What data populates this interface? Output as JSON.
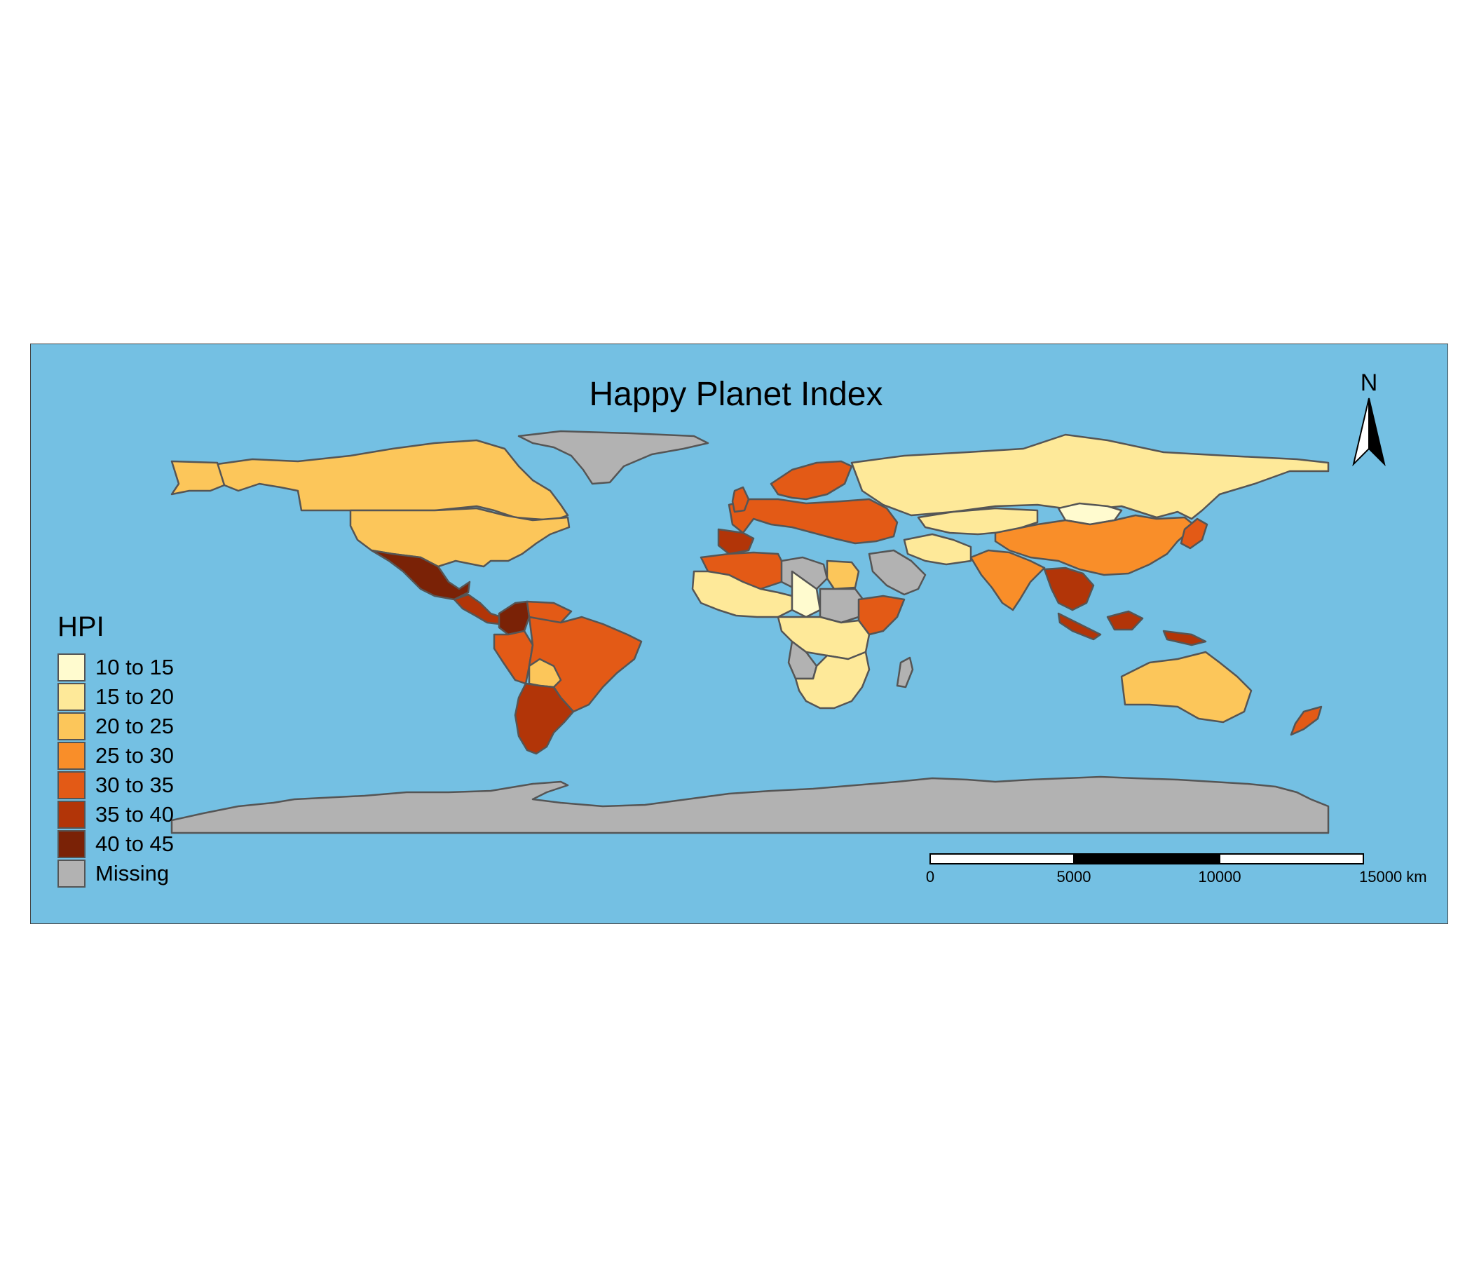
{
  "title": "Happy Planet Index",
  "legend": {
    "title": "HPI",
    "items": [
      {
        "label": "10 to 15",
        "color": "#FFFBCF"
      },
      {
        "label": "15 to 20",
        "color": "#FEE999"
      },
      {
        "label": "20 to 25",
        "color": "#FCC65A"
      },
      {
        "label": "25 to 30",
        "color": "#F98E29"
      },
      {
        "label": "30 to 35",
        "color": "#E35A16"
      },
      {
        "label": "35 to 40",
        "color": "#B23508"
      },
      {
        "label": "40 to 45",
        "color": "#7A2206"
      },
      {
        "label": "Missing",
        "color": "#B2B2B2"
      }
    ]
  },
  "ocean_color": "#74C0E3",
  "compass": {
    "label": "N"
  },
  "scale_bar": {
    "ticks": [
      "0",
      "5000",
      "10000",
      "15000 km"
    ]
  },
  "regions": [
    {
      "name": "Greenland",
      "class": "Missing"
    },
    {
      "name": "Canada",
      "class": "20 to 25"
    },
    {
      "name": "United States",
      "class": "20 to 25"
    },
    {
      "name": "Mexico",
      "class": "40 to 45"
    },
    {
      "name": "Central America",
      "class": "35 to 40"
    },
    {
      "name": "Colombia",
      "class": "40 to 45"
    },
    {
      "name": "Brazil",
      "class": "30 to 35"
    },
    {
      "name": "Argentina",
      "class": "35 to 40"
    },
    {
      "name": "Bolivia",
      "class": "20 to 25"
    },
    {
      "name": "Peru",
      "class": "30 to 35"
    },
    {
      "name": "Russia",
      "class": "15 to 20"
    },
    {
      "name": "Mongolia",
      "class": "10 to 15"
    },
    {
      "name": "Kazakhstan",
      "class": "15 to 20"
    },
    {
      "name": "China",
      "class": "25 to 30"
    },
    {
      "name": "India",
      "class": "25 to 30"
    },
    {
      "name": "Southeast Asia",
      "class": "35 to 40"
    },
    {
      "name": "Indonesia",
      "class": "35 to 40"
    },
    {
      "name": "Japan",
      "class": "30 to 35"
    },
    {
      "name": "Australia",
      "class": "20 to 25"
    },
    {
      "name": "New Zealand",
      "class": "30 to 35"
    },
    {
      "name": "Scandinavia",
      "class": "30 to 35"
    },
    {
      "name": "Western Europe",
      "class": "30 to 35"
    },
    {
      "name": "Spain",
      "class": "35 to 40"
    },
    {
      "name": "Algeria",
      "class": "30 to 35"
    },
    {
      "name": "Libya",
      "class": "Missing"
    },
    {
      "name": "Egypt",
      "class": "20 to 25"
    },
    {
      "name": "Saudi Arabia",
      "class": "Missing"
    },
    {
      "name": "West Africa",
      "class": "15 to 20"
    },
    {
      "name": "Chad",
      "class": "10 to 15"
    },
    {
      "name": "Sudan",
      "class": "Missing"
    },
    {
      "name": "Central Africa",
      "class": "15 to 20"
    },
    {
      "name": "Angola",
      "class": "Missing"
    },
    {
      "name": "Southern Africa",
      "class": "15 to 20"
    },
    {
      "name": "Madagascar",
      "class": "Missing"
    },
    {
      "name": "Antarctica",
      "class": "Missing"
    }
  ]
}
